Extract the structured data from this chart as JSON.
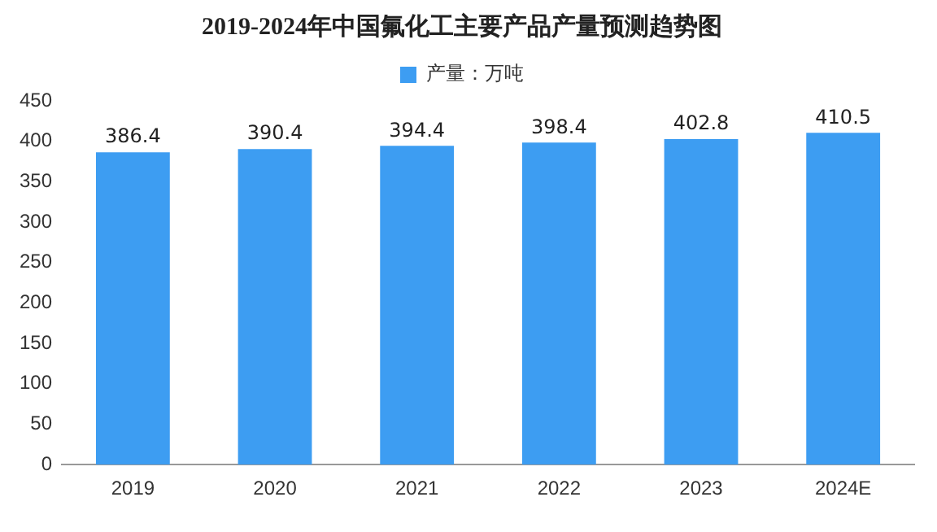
{
  "chart_data": {
    "type": "bar",
    "title": "2019-2024年中国氟化工主要产品产量预测趋势图",
    "categories": [
      "2019",
      "2020",
      "2021",
      "2022",
      "2023",
      "2024E"
    ],
    "series": [
      {
        "name": "产量：万吨",
        "color": "#3d9df2",
        "values": [
          386.4,
          390.4,
          394.4,
          398.4,
          402.8,
          410.5
        ]
      }
    ],
    "ylim": [
      0,
      450
    ],
    "yticks": [
      0,
      50,
      100,
      150,
      200,
      250,
      300,
      350,
      400,
      450
    ],
    "grid": false,
    "legend": "top",
    "data_labels": true
  }
}
